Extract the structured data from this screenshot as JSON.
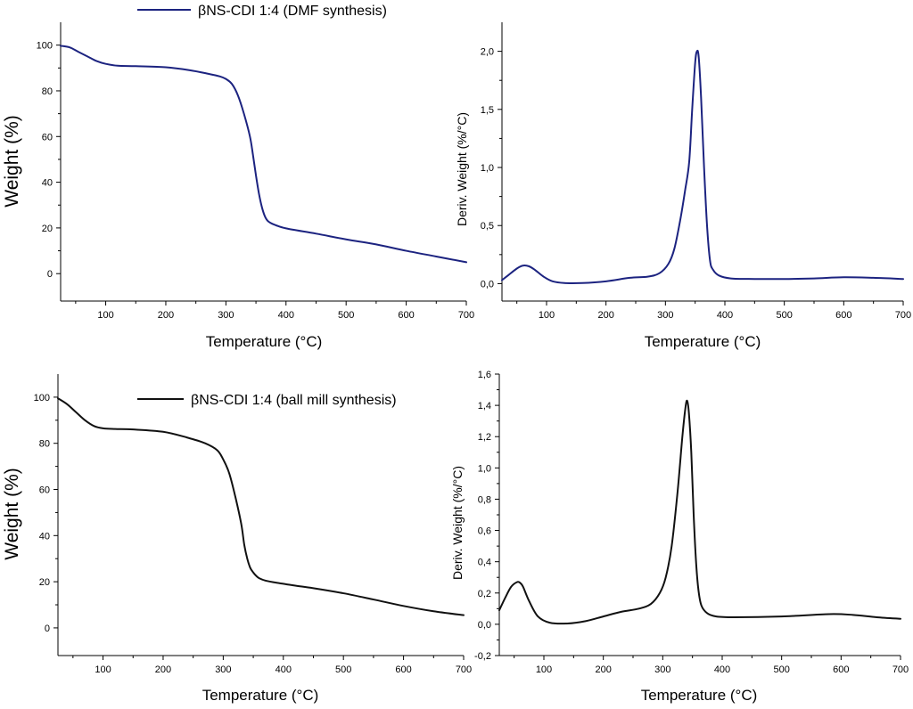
{
  "colors": {
    "navy": "#1c2380",
    "black": "#111111"
  },
  "chart_data": [
    {
      "id": "tga-dmf",
      "type": "line",
      "title": "",
      "xlabel": "Temperature (°C)",
      "ylabel": "Weight (%)",
      "xlim": [
        25,
        700
      ],
      "ylim": [
        -12,
        110
      ],
      "xticks": [
        100,
        200,
        300,
        400,
        500,
        600,
        700
      ],
      "yticks": [
        0,
        20,
        40,
        60,
        80,
        100
      ],
      "xtick_labels": [
        "100",
        "200",
        "300",
        "400",
        "500",
        "600",
        "700"
      ],
      "ytick_labels": [
        "0",
        "20",
        "40",
        "60",
        "80",
        "100"
      ],
      "legend": {
        "position": "top",
        "label": "βNS-CDI 1:4 (DMF synthesis)"
      },
      "series": [
        {
          "name": "βNS-CDI 1:4 (DMF synthesis)",
          "color": "#1c2380",
          "x": [
            25,
            40,
            55,
            70,
            85,
            100,
            120,
            150,
            200,
            240,
            270,
            290,
            300,
            310,
            320,
            330,
            340,
            345,
            350,
            355,
            360,
            365,
            370,
            380,
            400,
            450,
            500,
            550,
            600,
            650,
            700
          ],
          "y": [
            99.7,
            99,
            97,
            95,
            93,
            91.8,
            91,
            90.8,
            90.3,
            89,
            87.5,
            86.3,
            85.2,
            83,
            78,
            70,
            60,
            52,
            43,
            35,
            29,
            25,
            23,
            21.5,
            19.8,
            17.5,
            15,
            12.8,
            10,
            7.5,
            5
          ]
        }
      ]
    },
    {
      "id": "dtg-dmf",
      "type": "line",
      "title": "",
      "xlabel": "Temperature (°C)",
      "ylabel": "Deriv. Weight (%/°C)",
      "xlim": [
        25,
        700
      ],
      "ylim": [
        -0.15,
        2.25
      ],
      "xticks": [
        100,
        200,
        300,
        400,
        500,
        600,
        700
      ],
      "yticks": [
        0,
        0.5,
        1.0,
        1.5,
        2.0
      ],
      "xtick_labels": [
        "100",
        "200",
        "300",
        "400",
        "500",
        "600",
        "700"
      ],
      "ytick_labels": [
        "0,0",
        "0,5",
        "1,0",
        "1,5",
        "2,0"
      ],
      "series": [
        {
          "name": "βNS-CDI 1:4 (DMF synthesis) DTG",
          "color": "#1c2380",
          "x": [
            25,
            35,
            50,
            60,
            70,
            80,
            95,
            110,
            130,
            160,
            200,
            240,
            270,
            290,
            305,
            315,
            325,
            333,
            340,
            345,
            350,
            353,
            356,
            360,
            365,
            370,
            375,
            380,
            390,
            410,
            450,
            500,
            550,
            600,
            650,
            700
          ],
          "y": [
            0.03,
            0.07,
            0.13,
            0.155,
            0.15,
            0.12,
            0.06,
            0.02,
            0.005,
            0.005,
            0.02,
            0.05,
            0.06,
            0.09,
            0.17,
            0.3,
            0.55,
            0.8,
            1.05,
            1.5,
            1.9,
            2.0,
            1.95,
            1.6,
            1.0,
            0.5,
            0.2,
            0.12,
            0.07,
            0.045,
            0.04,
            0.04,
            0.045,
            0.055,
            0.05,
            0.04
          ]
        }
      ]
    },
    {
      "id": "tga-ballmill",
      "type": "line",
      "title": "",
      "xlabel": "Temperature (°C)",
      "ylabel": "Weight (%)",
      "xlim": [
        25,
        700
      ],
      "ylim": [
        -12,
        110
      ],
      "xticks": [
        100,
        200,
        300,
        400,
        500,
        600,
        700
      ],
      "yticks": [
        0,
        20,
        40,
        60,
        80,
        100
      ],
      "xtick_labels": [
        "100",
        "200",
        "300",
        "400",
        "500",
        "600",
        "700"
      ],
      "ytick_labels": [
        "0",
        "20",
        "40",
        "60",
        "80",
        "100"
      ],
      "legend": {
        "position": "top-right",
        "label": "βNS-CDI 1:4 (ball mill synthesis)"
      },
      "series": [
        {
          "name": "βNS-CDI 1:4 (ball mill synthesis)",
          "color": "#111111",
          "x": [
            25,
            40,
            55,
            70,
            85,
            100,
            120,
            150,
            200,
            240,
            270,
            290,
            300,
            310,
            320,
            330,
            335,
            340,
            345,
            350,
            355,
            360,
            370,
            390,
            420,
            450,
            500,
            550,
            600,
            650,
            700
          ],
          "y": [
            99.5,
            97,
            93.5,
            90,
            87.5,
            86.5,
            86.2,
            86,
            85,
            82.5,
            80,
            77,
            73,
            67,
            57,
            45,
            36,
            30,
            26,
            24,
            22.5,
            21.5,
            20.5,
            19.5,
            18.3,
            17.2,
            15,
            12.3,
            9.5,
            7.2,
            5.5
          ]
        }
      ]
    },
    {
      "id": "dtg-ballmill",
      "type": "line",
      "title": "",
      "xlabel": "Temperature (°C)",
      "ylabel": "Deriv. Weight (%/°C)",
      "xlim": [
        25,
        700
      ],
      "ylim": [
        -0.2,
        1.6
      ],
      "xticks": [
        100,
        200,
        300,
        400,
        500,
        600,
        700
      ],
      "yticks": [
        -0.2,
        0,
        0.2,
        0.4,
        0.6,
        0.8,
        1.0,
        1.2,
        1.4,
        1.6
      ],
      "xtick_labels": [
        "100",
        "200",
        "300",
        "400",
        "500",
        "600",
        "700"
      ],
      "ytick_labels": [
        "-0,2",
        "0,0",
        "0,2",
        "0,4",
        "0,6",
        "0,8",
        "1,0",
        "1,2",
        "1,4",
        "1,6"
      ],
      "series": [
        {
          "name": "βNS-CDI 1:4 (ball mill synthesis) DTG",
          "color": "#111111",
          "x": [
            25,
            35,
            45,
            55,
            60,
            65,
            75,
            90,
            110,
            140,
            170,
            200,
            230,
            260,
            280,
            295,
            305,
            315,
            325,
            333,
            338,
            341,
            344,
            348,
            352,
            356,
            360,
            365,
            375,
            390,
            420,
            500,
            580,
            620,
            660,
            700
          ],
          "y": [
            0.09,
            0.17,
            0.24,
            0.27,
            0.265,
            0.24,
            0.15,
            0.05,
            0.01,
            0.005,
            0.02,
            0.05,
            0.08,
            0.1,
            0.13,
            0.2,
            0.3,
            0.5,
            0.85,
            1.2,
            1.38,
            1.43,
            1.35,
            1.1,
            0.7,
            0.4,
            0.22,
            0.12,
            0.07,
            0.05,
            0.045,
            0.05,
            0.065,
            0.06,
            0.045,
            0.035
          ]
        }
      ]
    }
  ]
}
